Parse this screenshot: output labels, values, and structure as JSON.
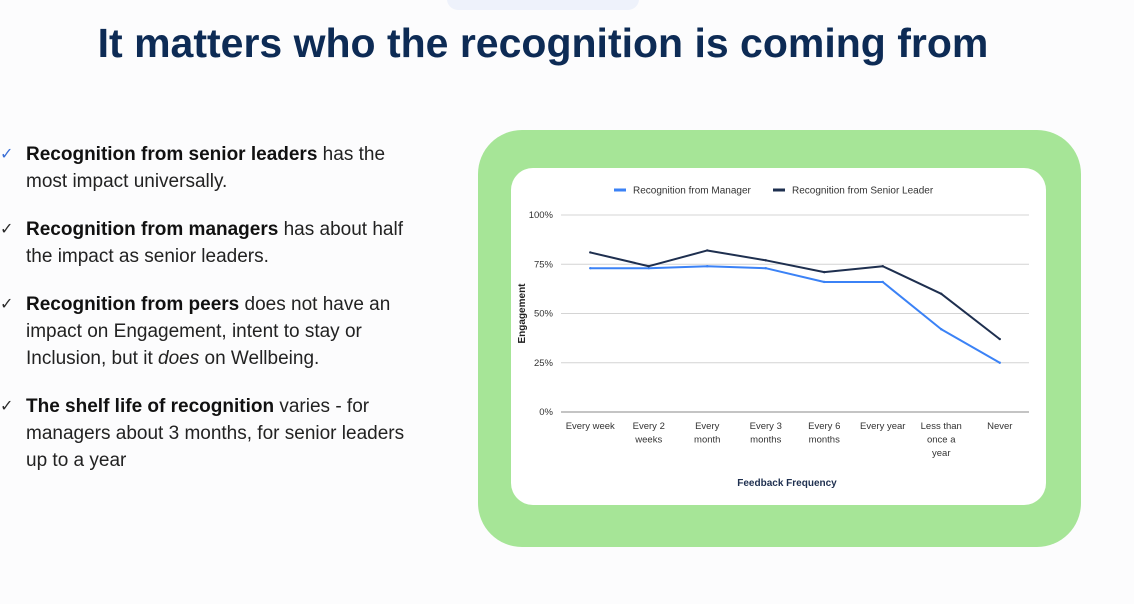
{
  "header": {
    "title": "It matters who the recognition is coming from"
  },
  "bullets": [
    {
      "bold": "Recognition from senior leaders",
      "rest": " has the most impact universally."
    },
    {
      "bold": "Recognition from managers",
      "rest": " has about half the impact as senior leaders."
    },
    {
      "bold": "Recognition from peers",
      "rest_a": " does not have an impact on Engagement, intent to stay or Inclusion, but it ",
      "italic": "does",
      "rest_b": " on Wellbeing."
    },
    {
      "bold": "The shelf life of recognition",
      "rest": " varies - for managers about 3 months, for senior leaders up to a year"
    }
  ],
  "colors": {
    "manager": "#3b82f6",
    "senior": "#1e2f4f",
    "frame": "#a6e597"
  },
  "chart_data": {
    "type": "line",
    "title": "",
    "xlabel": "Feedback Frequency",
    "ylabel": "Engagement",
    "ylim": [
      0,
      100
    ],
    "yticks": [
      "0%",
      "25%",
      "50%",
      "75%",
      "100%"
    ],
    "categories": [
      "Every week",
      "Every 2 weeks",
      "Every month",
      "Every 3 months",
      "Every 6 months",
      "Every year",
      "Less than once a year",
      "Never"
    ],
    "category_lines": [
      [
        "Every week"
      ],
      [
        "Every 2",
        "weeks"
      ],
      [
        "Every",
        "month"
      ],
      [
        "Every 3",
        "months"
      ],
      [
        "Every 6",
        "months"
      ],
      [
        "Every year"
      ],
      [
        "Less than",
        "once a",
        "year"
      ],
      [
        "Never"
      ]
    ],
    "legend_position": "top",
    "series": [
      {
        "name": "Recognition from Manager",
        "values": [
          73,
          73,
          74,
          73,
          66,
          66,
          42,
          25
        ]
      },
      {
        "name": "Recognition from Senior Leader",
        "values": [
          81,
          74,
          82,
          77,
          71,
          74,
          60,
          37
        ]
      }
    ]
  }
}
